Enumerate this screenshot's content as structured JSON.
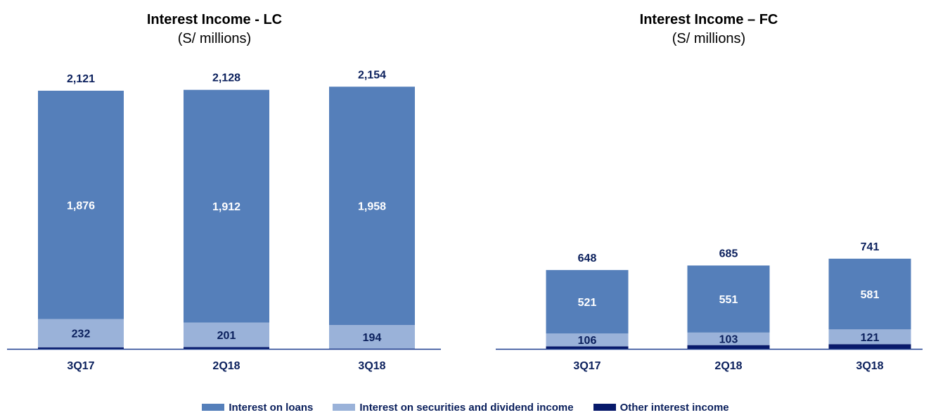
{
  "chart_data": [
    {
      "type": "bar",
      "stacked": true,
      "title": "Interest Income - LC",
      "subtitle": "(S/ millions)",
      "categories": [
        "3Q17",
        "2Q18",
        "3Q18"
      ],
      "series": [
        {
          "name": "Other interest income",
          "values": [
            13,
            15,
            2
          ],
          "label": false
        },
        {
          "name": "Interest on securities and dividend income",
          "values": [
            232,
            201,
            194
          ],
          "label": true
        },
        {
          "name": "Interest on loans",
          "values": [
            1876,
            1912,
            1958
          ],
          "label": true
        }
      ],
      "totals": [
        "2,121",
        "2,128",
        "2,154"
      ],
      "ylim": [
        0,
        2400
      ],
      "grid": false
    },
    {
      "type": "bar",
      "stacked": true,
      "title": "Interest Income – FC",
      "subtitle": "(S/ millions)",
      "categories": [
        "3Q17",
        "2Q18",
        "3Q18"
      ],
      "series": [
        {
          "name": "Other interest income",
          "values": [
            21,
            31,
            39
          ],
          "label": false
        },
        {
          "name": "Interest on securities and dividend income",
          "values": [
            106,
            103,
            121
          ],
          "label": true
        },
        {
          "name": "Interest on loans",
          "values": [
            521,
            551,
            581
          ],
          "label": true
        }
      ],
      "totals": [
        "648",
        "685",
        "741"
      ],
      "ylim": [
        0,
        2400
      ],
      "grid": false
    }
  ],
  "legend": {
    "placement": "bottom-center",
    "items": [
      {
        "label": "Interest on loans",
        "color": "#557fba"
      },
      {
        "label": "Interest on securities and dividend income",
        "color": "#9ab2d9"
      },
      {
        "label": "Other interest income",
        "color": "#081a6b"
      }
    ]
  },
  "colors": {
    "Interest on loans": "#557fba",
    "Interest on securities and dividend income": "#9ab2d9",
    "Other interest income": "#081a6b",
    "axis": "#1f3f8f",
    "loans_label": "#ffffff",
    "securities_label": "#0a1f5c",
    "total_label": "#0a1f5c"
  }
}
